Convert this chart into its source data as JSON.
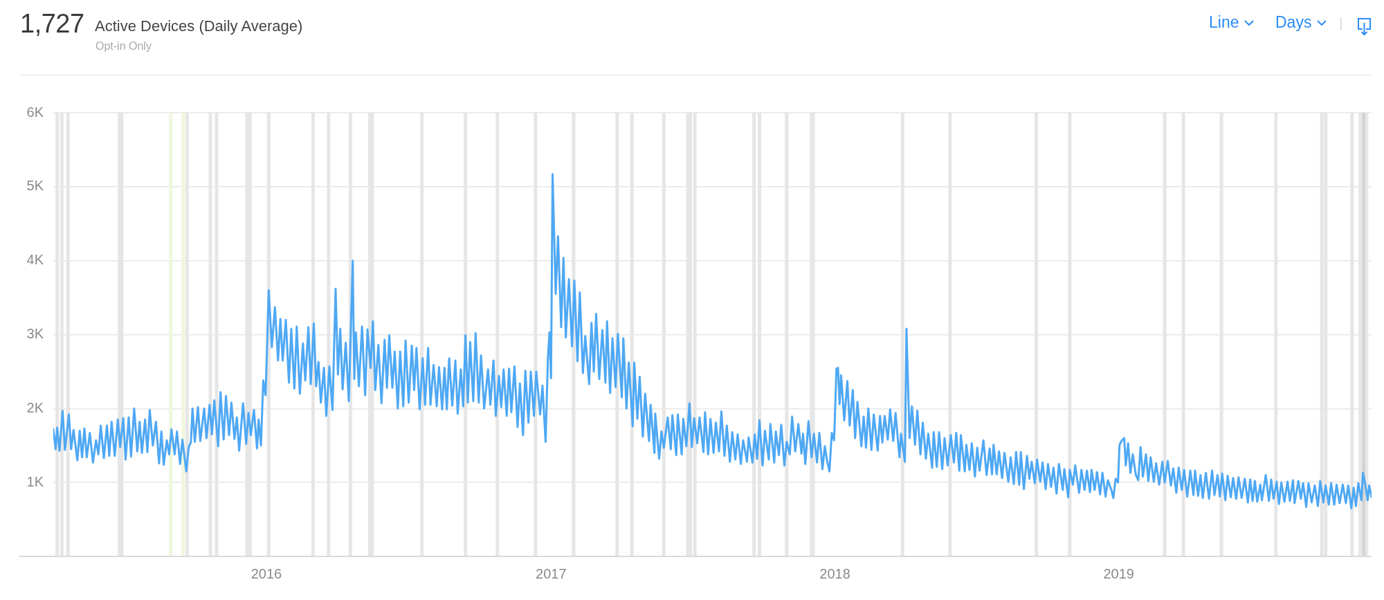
{
  "chart_data": {
    "type": "line",
    "title": "Active Devices (Daily Average)",
    "subtitle": "Opt-in Only",
    "annotations": [
      "1,727",
      "Line",
      "Days"
    ],
    "color": "#4ea8f4",
    "x": [
      "2015-04-02",
      "2015-04-05",
      "2015-04-07",
      "2015-04-10",
      "2015-04-14",
      "2015-04-17",
      "2015-04-22",
      "2015-04-25",
      "2015-04-28",
      "2015-05-03",
      "2015-05-06",
      "2015-05-09",
      "2015-05-12",
      "2015-05-15",
      "2015-05-19",
      "2015-05-23",
      "2015-05-27",
      "2015-05-30",
      "2015-06-02",
      "2015-06-06",
      "2015-06-10",
      "2015-06-13",
      "2015-06-16",
      "2015-06-20",
      "2015-06-24",
      "2015-06-27",
      "2015-07-01",
      "2015-07-04",
      "2015-07-08",
      "2015-07-11",
      "2015-07-15",
      "2015-07-19",
      "2015-07-22",
      "2015-07-25",
      "2015-07-29",
      "2015-08-01",
      "2015-08-04",
      "2015-08-08",
      "2015-08-12",
      "2015-08-16",
      "2015-08-19",
      "2015-08-22",
      "2015-08-26",
      "2015-08-29",
      "2015-09-01",
      "2015-09-05",
      "2015-09-08",
      "2015-09-12",
      "2015-09-15",
      "2015-09-20",
      "2015-09-23",
      "2015-09-26",
      "2015-09-28",
      "2015-10-01",
      "2015-10-05",
      "2015-10-08",
      "2015-10-13",
      "2015-10-16",
      "2015-10-20",
      "2015-10-23",
      "2015-10-26",
      "2015-10-31",
      "2015-11-03",
      "2015-11-07",
      "2015-11-10",
      "2015-11-14",
      "2015-11-17",
      "2015-11-21",
      "2015-11-24",
      "2015-11-27",
      "2015-12-02",
      "2015-12-06",
      "2015-12-09",
      "2015-12-12",
      "2015-12-16",
      "2015-12-20",
      "2015-12-22",
      "2015-12-25",
      "2015-12-28",
      "2015-12-31",
      "2016-01-04",
      "2016-01-08",
      "2016-01-12",
      "2016-01-16",
      "2016-01-19",
      "2016-01-22",
      "2016-01-26",
      "2016-01-30",
      "2016-02-02",
      "2016-02-06",
      "2016-02-09",
      "2016-02-13",
      "2016-02-17",
      "2016-02-20",
      "2016-02-24",
      "2016-02-27",
      "2016-03-02",
      "2016-03-05",
      "2016-03-08",
      "2016-03-11",
      "2016-03-15",
      "2016-03-18",
      "2016-03-22",
      "2016-03-26",
      "2016-03-30",
      "2016-04-02",
      "2016-04-05",
      "2016-04-08",
      "2016-04-12",
      "2016-04-16",
      "2016-04-21",
      "2016-04-23",
      "2016-04-25",
      "2016-04-29",
      "2016-05-03",
      "2016-05-07",
      "2016-05-10",
      "2016-05-14",
      "2016-05-17",
      "2016-05-20",
      "2016-05-24",
      "2016-05-28",
      "2016-06-01",
      "2016-06-04",
      "2016-06-07",
      "2016-06-11",
      "2016-06-14",
      "2016-06-18",
      "2016-06-21",
      "2016-06-25",
      "2016-06-28",
      "2016-07-02",
      "2016-07-06",
      "2016-07-09",
      "2016-07-12",
      "2016-07-16",
      "2016-07-20",
      "2016-07-23",
      "2016-07-27",
      "2016-07-30",
      "2016-08-03",
      "2016-08-07",
      "2016-08-10",
      "2016-08-14",
      "2016-08-17",
      "2016-08-20",
      "2016-08-23",
      "2016-08-27",
      "2016-08-31",
      "2016-09-03",
      "2016-09-07",
      "2016-09-10",
      "2016-09-13",
      "2016-09-16",
      "2016-09-19",
      "2016-09-23",
      "2016-09-26",
      "2016-09-30",
      "2016-10-03",
      "2016-10-07",
      "2016-10-12",
      "2016-10-15",
      "2016-10-19",
      "2016-10-22",
      "2016-10-26",
      "2016-10-29",
      "2016-11-01",
      "2016-11-05",
      "2016-11-08",
      "2016-11-11",
      "2016-11-15",
      "2016-11-19",
      "2016-11-22",
      "2016-11-26",
      "2016-11-29",
      "2016-12-03",
      "2016-12-06",
      "2016-12-10",
      "2016-12-13",
      "2016-12-18",
      "2016-12-21",
      "2016-12-25",
      "2016-12-28",
      "2016-12-30",
      "2017-01-01",
      "2017-01-03",
      "2017-01-07",
      "2017-01-10",
      "2017-01-14",
      "2017-01-17",
      "2017-01-20",
      "2017-01-24",
      "2017-01-28",
      "2017-01-31",
      "2017-02-04",
      "2017-02-07",
      "2017-02-11",
      "2017-02-14",
      "2017-02-19",
      "2017-02-22",
      "2017-02-25",
      "2017-02-28",
      "2017-03-04",
      "2017-03-08",
      "2017-03-12",
      "2017-03-14",
      "2017-03-18",
      "2017-03-21",
      "2017-03-25",
      "2017-03-28",
      "2017-04-02",
      "2017-04-04",
      "2017-04-08",
      "2017-04-11",
      "2017-04-16",
      "2017-04-18",
      "2017-04-22",
      "2017-04-25",
      "2017-04-29",
      "2017-05-02",
      "2017-05-07",
      "2017-05-09",
      "2017-05-14",
      "2017-05-15",
      "2017-05-20",
      "2017-05-23",
      "2017-05-26",
      "2017-05-31",
      "2017-06-04",
      "2017-06-06",
      "2017-06-11",
      "2017-06-13",
      "2017-06-18",
      "2017-06-20",
      "2017-06-24",
      "2017-06-28",
      "2017-07-01",
      "2017-07-04",
      "2017-07-08",
      "2017-07-11",
      "2017-07-16",
      "2017-07-18",
      "2017-07-22",
      "2017-07-25",
      "2017-07-29",
      "2017-08-01",
      "2017-08-05",
      "2017-08-08",
      "2017-08-12",
      "2017-08-15",
      "2017-08-19",
      "2017-08-22",
      "2017-08-26",
      "2017-08-29",
      "2017-09-02",
      "2017-09-05",
      "2017-09-10",
      "2017-09-12",
      "2017-09-17",
      "2017-09-20",
      "2017-09-23",
      "2017-09-26",
      "2017-09-30",
      "2017-10-03",
      "2017-10-08",
      "2017-10-10",
      "2017-10-15",
      "2017-10-17",
      "2017-10-21",
      "2017-10-24",
      "2017-10-28",
      "2017-10-31",
      "2017-11-04",
      "2017-11-07",
      "2017-11-11",
      "2017-11-15",
      "2017-11-19",
      "2017-11-21",
      "2017-11-24",
      "2017-11-28",
      "2017-12-02",
      "2017-12-05",
      "2017-12-09",
      "2017-12-12",
      "2017-12-16",
      "2017-12-19",
      "2017-12-22",
      "2017-12-25",
      "2017-12-28",
      "2017-12-31",
      "2018-01-03",
      "2018-01-05",
      "2018-01-07",
      "2018-01-09",
      "2018-01-13",
      "2018-01-17",
      "2018-01-20",
      "2018-01-24",
      "2018-01-27",
      "2018-01-30",
      "2018-02-04",
      "2018-02-07",
      "2018-02-10",
      "2018-02-13",
      "2018-02-17",
      "2018-02-20",
      "2018-02-25",
      "2018-02-28",
      "2018-03-03",
      "2018-03-06",
      "2018-03-10",
      "2018-03-13",
      "2018-03-17",
      "2018-03-20",
      "2018-03-25",
      "2018-03-27",
      "2018-04-01",
      "2018-04-03",
      "2018-04-07",
      "2018-04-10",
      "2018-04-14",
      "2018-04-17",
      "2018-04-21",
      "2018-04-24",
      "2018-04-28",
      "2018-05-01",
      "2018-05-06",
      "2018-05-08",
      "2018-05-12",
      "2018-05-15",
      "2018-05-19",
      "2018-05-22",
      "2018-05-26",
      "2018-05-30",
      "2018-06-03",
      "2018-06-06",
      "2018-06-10",
      "2018-06-12",
      "2018-06-17",
      "2018-06-19",
      "2018-06-23",
      "2018-06-26",
      "2018-06-30",
      "2018-07-03",
      "2018-07-06",
      "2018-07-11",
      "2018-07-15",
      "2018-07-19",
      "2018-07-22",
      "2018-07-24",
      "2018-07-28",
      "2018-07-31",
      "2018-08-04",
      "2018-08-07",
      "2018-08-12",
      "2018-08-15",
      "2018-08-19",
      "2018-08-22",
      "2018-08-26",
      "2018-08-28",
      "2018-09-01",
      "2018-09-05",
      "2018-09-08",
      "2018-09-11",
      "2018-09-15",
      "2018-09-18",
      "2018-09-22",
      "2018-09-25",
      "2018-09-29",
      "2018-10-02",
      "2018-10-06",
      "2018-10-09",
      "2018-10-13",
      "2018-10-16",
      "2018-10-21",
      "2018-10-23",
      "2018-10-28",
      "2018-10-30",
      "2018-11-03",
      "2018-11-06",
      "2018-11-11",
      "2018-11-14",
      "2018-11-18",
      "2018-11-21",
      "2018-11-25",
      "2018-11-27",
      "2018-12-01",
      "2018-12-04",
      "2018-12-08",
      "2018-12-11",
      "2018-12-15",
      "2018-12-18",
      "2018-12-23",
      "2018-12-25",
      "2018-12-28",
      "2018-12-31",
      "2019-01-02",
      "2019-01-05",
      "2019-01-08",
      "2019-01-10",
      "2019-01-13",
      "2019-01-16",
      "2019-01-19",
      "2019-01-23",
      "2019-01-26",
      "2019-01-29",
      "2019-02-01",
      "2019-02-05",
      "2019-02-08",
      "2019-02-11",
      "2019-02-15",
      "2019-02-18",
      "2019-02-22",
      "2019-02-26",
      "2019-03-01",
      "2019-03-05",
      "2019-03-09",
      "2019-03-12",
      "2019-03-16",
      "2019-03-19",
      "2019-03-23",
      "2019-03-26",
      "2019-03-30",
      "2019-04-03",
      "2019-04-07",
      "2019-04-09",
      "2019-04-13",
      "2019-04-16",
      "2019-04-19",
      "2019-04-23",
      "2019-04-27",
      "2019-05-01",
      "2019-05-04",
      "2019-05-08",
      "2019-05-11",
      "2019-05-14",
      "2019-05-18",
      "2019-05-21",
      "2019-05-25",
      "2019-05-28",
      "2019-06-01",
      "2019-06-04",
      "2019-06-08",
      "2019-06-12",
      "2019-06-16",
      "2019-06-19",
      "2019-06-22",
      "2019-06-25",
      "2019-06-28",
      "2019-07-02",
      "2019-07-04",
      "2019-07-09",
      "2019-07-13",
      "2019-07-16",
      "2019-07-19",
      "2019-07-23",
      "2019-07-26",
      "2019-07-29",
      "2019-08-02",
      "2019-08-06",
      "2019-08-09",
      "2019-08-13",
      "2019-08-15",
      "2019-08-20",
      "2019-08-23",
      "2019-08-26",
      "2019-08-30",
      "2019-09-02",
      "2019-09-06",
      "2019-09-10",
      "2019-09-14",
      "2019-09-17",
      "2019-09-21",
      "2019-09-24",
      "2019-09-28",
      "2019-10-01",
      "2019-10-05",
      "2019-10-08",
      "2019-10-12",
      "2019-10-16",
      "2019-10-20",
      "2019-10-23",
      "2019-10-27",
      "2019-10-30",
      "2019-11-02",
      "2019-11-05",
      "2019-11-09",
      "2019-11-11",
      "2019-11-14",
      "2019-11-17",
      "2019-11-19",
      "2019-11-22"
    ],
    "values": [
      1720,
      1450,
      1740,
      1430,
      1970,
      1440,
      1920,
      1450,
      1710,
      1300,
      1700,
      1340,
      1730,
      1340,
      1670,
      1270,
      1570,
      1380,
      1770,
      1330,
      1770,
      1360,
      1820,
      1360,
      1850,
      1480,
      1870,
      1310,
      1880,
      1350,
      2000,
      1420,
      1820,
      1400,
      1850,
      1410,
      1980,
      1500,
      1820,
      1260,
      1690,
      1240,
      1570,
      1380,
      1720,
      1380,
      1690,
      1250,
      1580,
      1150,
      1470,
      1550,
      2000,
      1550,
      2020,
      1560,
      2000,
      1600,
      2050,
      1650,
      2110,
      1490,
      2220,
      1580,
      2170,
      1640,
      2080,
      1590,
      1880,
      1430,
      2070,
      1520,
      1940,
      1640,
      1980,
      1460,
      1850,
      1500,
      2380,
      2180,
      3600,
      2830,
      3370,
      2650,
      3210,
      2650,
      3200,
      2350,
      3080,
      2270,
      3110,
      2200,
      2880,
      2380,
      3100,
      2330,
      3150,
      2300,
      2630,
      2080,
      2550,
      1900,
      2570,
      1980,
      3620,
      2460,
      3080,
      2260,
      2890,
      2100,
      4000,
      2400,
      3030,
      2300,
      3110,
      2180,
      3070,
      2550,
      3180,
      2250,
      2860,
      2070,
      2930,
      2280,
      2990,
      2280,
      2770,
      2000,
      2770,
      2030,
      2920,
      2080,
      2850,
      2250,
      2820,
      1990,
      2680,
      2050,
      2820,
      2050,
      2590,
      2030,
      2560,
      1990,
      2550,
      1990,
      2680,
      2040,
      2650,
      1930,
      2530,
      2030,
      2990,
      2080,
      2900,
      2100,
      3020,
      2080,
      2720,
      2000,
      2530,
      2050,
      2650,
      1900,
      2440,
      2020,
      2530,
      1900,
      2540,
      1950,
      2570,
      1750,
      2340,
      1640,
      2510,
      1810,
      2500,
      1900,
      2500,
      1920,
      2310,
      1550,
      2680,
      3030,
      2410,
      5170,
      3550,
      4330,
      3100,
      4040,
      2960,
      3750,
      2840,
      3730,
      2640,
      3570,
      2480,
      2980,
      2330,
      3160,
      2500,
      3280,
      2400,
      3060,
      2350,
      3180,
      2210,
      2950,
      2290,
      3010,
      2150,
      2950,
      2000,
      2620,
      1760,
      2620,
      1860,
      2430,
      1620,
      2200,
      1560,
      2050,
      1400,
      1930,
      1320,
      1690,
      1470,
      1880,
      1450,
      1910,
      1370,
      1920,
      1380,
      1860,
      1490,
      2070,
      1480,
      1870,
      1530,
      1880,
      1410,
      1950,
      1380,
      1860,
      1400,
      1810,
      1420,
      1960,
      1360,
      1770,
      1280,
      1680,
      1310,
      1650,
      1250,
      1570,
      1280,
      1610,
      1270,
      1650,
      1320,
      1840,
      1230,
      1700,
      1310,
      1790,
      1270,
      1690,
      1370,
      1780,
      1230,
      1550,
      1380,
      1890,
      1420,
      1790,
      1390,
      1660,
      1250,
      1830,
      1340,
      1660,
      1270,
      1670,
      1180,
      1490,
      1290,
      1150,
      1670,
      1570,
      2540,
      2550,
      2060,
      2450,
      1840,
      2370,
      1770,
      2250,
      1600,
      2090,
      1490,
      1890,
      1470,
      2000,
      1440,
      1920,
      1430,
      1900,
      1540,
      1900,
      1580,
      1990,
      1560,
      1940,
      1340,
      1660,
      1280,
      3080,
      1600,
      2030,
      1510,
      1970,
      1380,
      1810,
      1320,
      1660,
      1200,
      1680,
      1210,
      1680,
      1180,
      1600,
      1230,
      1640,
      1270,
      1670,
      1160,
      1640,
      1150,
      1510,
      1170,
      1530,
      1080,
      1470,
      1160,
      1570,
      1100,
      1460,
      1110,
      1510,
      1110,
      1420,
      1060,
      1400,
      1010,
      1340,
      980,
      1410,
      970,
      1410,
      910,
      1360,
      1050,
      1280,
      990,
      1310,
      1010,
      1270,
      910,
      1250,
      940,
      1200,
      850,
      1250,
      900,
      1180,
      800,
      1170,
      970,
      1230,
      860,
      1170,
      900,
      1160,
      870,
      1170,
      900,
      1140,
      840,
      1130,
      810,
      1030,
      880,
      790,
      1050,
      1000,
      1510,
      1570,
      1600,
      1230,
      1530,
      1130,
      1380,
      1100,
      1030,
      1480,
      1080,
      1380,
      1020,
      1340,
      1010,
      1260,
      970,
      1280,
      1000,
      1290,
      960,
      1190,
      860,
      1200,
      900,
      1170,
      810,
      1160,
      830,
      1160,
      820,
      1100,
      790,
      1130,
      780,
      1160,
      830,
      1100,
      810,
      1120,
      760,
      1090,
      800,
      1060,
      780,
      1070,
      790,
      1050,
      730,
      1040,
      750,
      1020,
      740,
      970,
      760,
      1100,
      750,
      1040,
      780,
      1010,
      710,
      1000,
      740,
      1010,
      750,
      1030,
      720,
      1020,
      780,
      990,
      670,
      990,
      730,
      960,
      680,
      1020,
      730,
      960,
      700,
      990,
      700,
      970,
      720,
      970,
      720,
      960,
      650,
      930,
      680,
      990,
      760,
      1130,
      970,
      760,
      960,
      800
    ],
    "xlim": [
      "2015-04-02",
      "2019-11-22"
    ],
    "xticks": [
      "2016",
      "2017",
      "2018",
      "2019"
    ],
    "ylim": [
      0,
      6000
    ],
    "yticks": [
      {
        "value": 0,
        "label": null
      },
      {
        "value": 1000,
        "label": "1K"
      },
      {
        "value": 2000,
        "label": "2K"
      },
      {
        "value": 3000,
        "label": "3K"
      },
      {
        "value": 4000,
        "label": "4K"
      },
      {
        "value": 5000,
        "label": "5K"
      },
      {
        "value": 6000,
        "label": "6K"
      }
    ],
    "grid": "y",
    "bands": [
      {
        "axis": "x",
        "from": "2019-11-05",
        "to": "2019-11-18",
        "color": "#e8e8e8"
      }
    ],
    "ref_lines": [
      {
        "axis": "x",
        "value": "2015-04-07",
        "color": "#e6e6e6"
      },
      {
        "axis": "x",
        "value": "2015-04-13",
        "color": "#e6e6e6"
      },
      {
        "axis": "x",
        "value": "2015-04-21",
        "color": "#e6e6e6"
      },
      {
        "axis": "x",
        "value": "2015-06-26",
        "color": "#e6e6e6"
      },
      {
        "axis": "x",
        "value": "2015-06-29",
        "color": "#e6e6e6"
      },
      {
        "axis": "x",
        "value": "2015-08-31",
        "color": "#eff8de"
      },
      {
        "axis": "x",
        "value": "2015-09-16",
        "color": "#eff8de"
      },
      {
        "axis": "x",
        "value": "2015-09-21",
        "color": "#e6e6e6"
      },
      {
        "axis": "x",
        "value": "2015-10-21",
        "color": "#e6e6e6"
      },
      {
        "axis": "x",
        "value": "2015-10-29",
        "color": "#e6e6e6"
      },
      {
        "axis": "x",
        "value": "2015-12-07",
        "color": "#e6e6e6"
      },
      {
        "axis": "x",
        "value": "2015-12-11",
        "color": "#e6e6e6"
      },
      {
        "axis": "x",
        "value": "2016-01-04",
        "color": "#e6e6e6"
      },
      {
        "axis": "x",
        "value": "2016-03-01",
        "color": "#e6e6e6"
      },
      {
        "axis": "x",
        "value": "2016-03-21",
        "color": "#e6e6e6"
      },
      {
        "axis": "x",
        "value": "2016-04-18",
        "color": "#e6e6e6"
      },
      {
        "axis": "x",
        "value": "2016-05-13",
        "color": "#e6e6e6"
      },
      {
        "axis": "x",
        "value": "2016-05-16",
        "color": "#e6e6e6"
      },
      {
        "axis": "x",
        "value": "2016-07-19",
        "color": "#e6e6e6"
      },
      {
        "axis": "x",
        "value": "2016-09-13",
        "color": "#e6e6e6"
      },
      {
        "axis": "x",
        "value": "2016-10-24",
        "color": "#e6e6e6"
      },
      {
        "axis": "x",
        "value": "2016-12-12",
        "color": "#e6e6e6"
      },
      {
        "axis": "x",
        "value": "2017-01-30",
        "color": "#e6e6e6"
      },
      {
        "axis": "x",
        "value": "2017-03-27",
        "color": "#e6e6e6"
      },
      {
        "axis": "x",
        "value": "2017-04-15",
        "color": "#e6e6e6"
      },
      {
        "axis": "x",
        "value": "2017-05-26",
        "color": "#e6e6e6"
      },
      {
        "axis": "x",
        "value": "2017-06-26",
        "color": "#e6e6e6"
      },
      {
        "axis": "x",
        "value": "2017-06-29",
        "color": "#e6e6e6"
      },
      {
        "axis": "x",
        "value": "2017-07-05",
        "color": "#e6e6e6"
      },
      {
        "axis": "x",
        "value": "2017-09-19",
        "color": "#e6e6e6"
      },
      {
        "axis": "x",
        "value": "2017-09-26",
        "color": "#e6e6e6"
      },
      {
        "axis": "x",
        "value": "2017-10-31",
        "color": "#e6e6e6"
      },
      {
        "axis": "x",
        "value": "2017-12-02",
        "color": "#e6e6e6"
      },
      {
        "axis": "x",
        "value": "2017-12-04",
        "color": "#e6e6e6"
      },
      {
        "axis": "x",
        "value": "2018-03-29",
        "color": "#e6e6e6"
      },
      {
        "axis": "x",
        "value": "2018-05-29",
        "color": "#e6e6e6"
      },
      {
        "axis": "x",
        "value": "2018-09-17",
        "color": "#e6e6e6"
      },
      {
        "axis": "x",
        "value": "2018-10-30",
        "color": "#e6e6e6"
      },
      {
        "axis": "x",
        "value": "2019-03-01",
        "color": "#e6e6e6"
      },
      {
        "axis": "x",
        "value": "2019-03-25",
        "color": "#e6e6e6"
      },
      {
        "axis": "x",
        "value": "2019-05-13",
        "color": "#e6e6e6"
      },
      {
        "axis": "x",
        "value": "2019-07-22",
        "color": "#e6e6e6"
      },
      {
        "axis": "x",
        "value": "2019-09-19",
        "color": "#e6e6e6"
      },
      {
        "axis": "x",
        "value": "2019-09-24",
        "color": "#e6e6e6"
      },
      {
        "axis": "x",
        "value": "2019-10-28",
        "color": "#e6e6e6"
      },
      {
        "axis": "x",
        "value": "2019-11-12",
        "color": "#d4d4d4"
      }
    ]
  }
}
